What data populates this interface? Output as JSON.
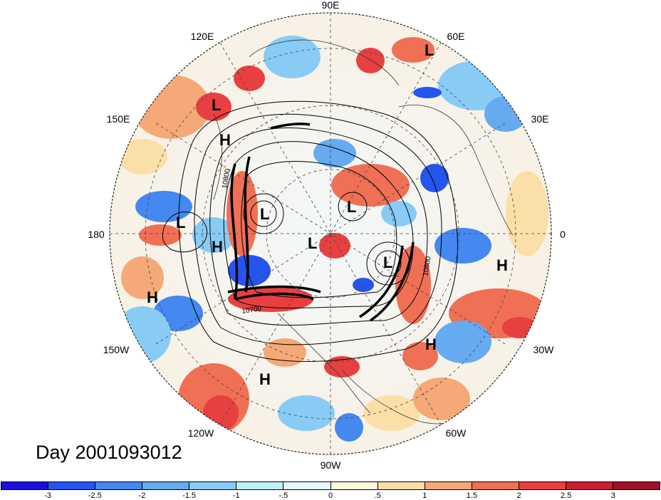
{
  "map": {
    "lon_labels": {
      "e90": "90E",
      "e120": "120E",
      "e60": "60E",
      "e150": "150E",
      "e30": "30E",
      "lon180": "180",
      "lon0": "0",
      "w150": "150W",
      "w30": "30W",
      "w120": "120W",
      "w60": "60W",
      "w90": "90W"
    },
    "pressure_centers": [
      {
        "type": "L",
        "label": "L"
      },
      {
        "type": "L",
        "label": "L"
      },
      {
        "type": "H",
        "label": "H"
      },
      {
        "type": "L",
        "label": "L"
      },
      {
        "type": "L",
        "label": "L"
      },
      {
        "type": "L",
        "label": "L"
      },
      {
        "type": "H",
        "label": "H"
      },
      {
        "type": "L",
        "label": "L"
      },
      {
        "type": "L",
        "label": "L"
      },
      {
        "type": "H",
        "label": "H"
      },
      {
        "type": "H",
        "label": "H"
      },
      {
        "type": "H",
        "label": "H"
      },
      {
        "type": "H",
        "label": "H"
      }
    ],
    "contour_labels": [
      "10800",
      "10700",
      "10800"
    ]
  },
  "title": {
    "day": "Day 2001093012"
  },
  "colorbar": {
    "colors": [
      "#1a0ee0",
      "#2555f0",
      "#4488f0",
      "#66aaf0",
      "#88ccf5",
      "#c0f0fa",
      "#e8f8fc",
      "#fcf8dc",
      "#fae0a8",
      "#f5a878",
      "#f07055",
      "#e84040",
      "#c82030",
      "#a01028"
    ],
    "tick_labels": [
      "-3",
      "-2.5",
      "-2",
      "-1.5",
      "-1",
      "-.5",
      "0",
      ".5",
      "1",
      "1.5",
      "2",
      "2.5",
      "3"
    ]
  }
}
